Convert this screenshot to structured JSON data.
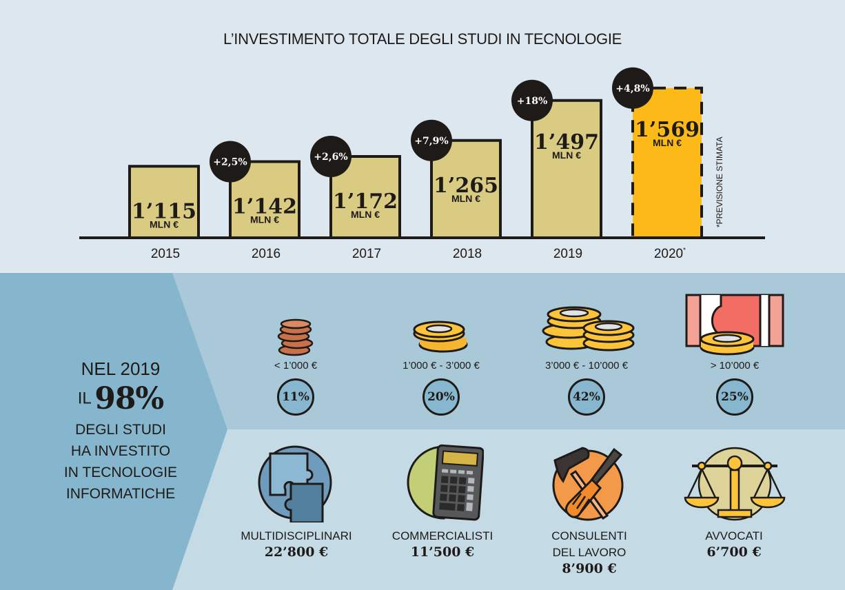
{
  "chart_data": {
    "type": "bar",
    "title": "L’INVESTIMENTO TOTALE DEGLI STUDI IN TECNOLOGIE",
    "categories": [
      "2015",
      "2016",
      "2017",
      "2018",
      "2019",
      "2020*"
    ],
    "values": [
      1115,
      1142,
      1172,
      1265,
      1497,
      1569
    ],
    "value_labels": [
      "1’115",
      "1’142",
      "1’172",
      "1’265",
      "1’497",
      "1’569"
    ],
    "unit_label": "MLN €",
    "growth_labels": [
      null,
      "+2,5%",
      "+2,6%",
      "+7,9%",
      "+18%",
      "+4,8%"
    ],
    "estimated": [
      false,
      false,
      false,
      false,
      false,
      true
    ],
    "footnote": "*PREVISIONE STIMATA",
    "xlabel": "",
    "ylabel": "",
    "colors": {
      "bar": "#d9cb82",
      "estimated_bar": "#fbba17",
      "badge": "#1e1a17",
      "outline": "#1e1a17"
    }
  },
  "summary": {
    "line1": "NEL 2019",
    "il": "IL",
    "pct": "98%",
    "rest": [
      "DEGLI STUDI",
      "HA INVESTITO",
      "IN TECNOLOGIE",
      "INFORMATICHE"
    ]
  },
  "brackets": [
    {
      "label": "< 1’000 €",
      "share": "11%",
      "icon": "copper-coins-icon"
    },
    {
      "label": "1’000 € - 3’000 €",
      "share": "20%",
      "icon": "gold-coins-icon"
    },
    {
      "label": "3’000 € - 10’000 €",
      "share": "42%",
      "icon": "coin-stacks-icon"
    },
    {
      "label": "> 10’000 €",
      "share": "25%",
      "icon": "banknote-coin-icon"
    }
  ],
  "categories": [
    {
      "name": [
        "MULTIDISCIPLINARI"
      ],
      "value": "22’800 €",
      "icon": "puzzle-icon"
    },
    {
      "name": [
        "COMMERCIALISTI"
      ],
      "value": "11’500 €",
      "icon": "calculator-icon"
    },
    {
      "name": [
        "CONSULENTI",
        "DEL LAVORO"
      ],
      "value": "8’900 €",
      "icon": "tools-icon"
    },
    {
      "name": [
        "AVVOCATI"
      ],
      "value": "6’700 €",
      "icon": "scales-icon"
    }
  ]
}
